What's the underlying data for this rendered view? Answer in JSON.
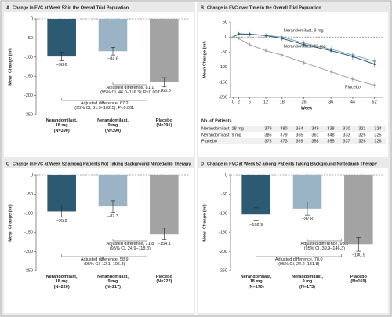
{
  "chart_data": [
    {
      "type": "bar",
      "panel": "A",
      "title": "Change in FVC at Week 52 in the Overall Trial Population",
      "y_label": "Mean Change (ml)",
      "categories": [
        "Nerandomilast,\n18 mg\n(N=390)",
        "Nerandomilast,\n9 mg\n(N=390)",
        "Placebo\n(N=391)"
      ],
      "values": [
        -98.6,
        -84.6,
        -165.8
      ],
      "value_labels": [
        "−98.6",
        "−84.6",
        "−165.8"
      ],
      "errors": [
        11,
        10,
        12
      ],
      "colors": [
        "#2d5a73",
        "#9ab4c6",
        "#a3a3a3"
      ],
      "ylim": [
        -250,
        0
      ],
      "yticks": [
        0,
        -50,
        -100,
        -150,
        -200,
        -250
      ],
      "annotations": [
        "Adjusted difference, 81.1\n(95% CI, 46.0–116.3); P<0.001",
        "Adjusted difference, 67.2\n(95% CI, 31.9–102.5); P<0.001"
      ]
    },
    {
      "type": "line",
      "panel": "B",
      "title": "Change in FVC over Time in the Overall Trial Population",
      "y_label": "Mean Change (ml)",
      "x_label": "Week",
      "x": [
        0,
        2,
        6,
        12,
        18,
        26,
        36,
        44,
        52
      ],
      "xlim": [
        -1,
        55
      ],
      "xticks": [
        0,
        2,
        6,
        12,
        18,
        26,
        36,
        44,
        52
      ],
      "ylim": [
        -200,
        50
      ],
      "yticks": [
        50,
        0,
        -50,
        -100,
        -150,
        -200
      ],
      "series": [
        {
          "name": "Nerandomilast, 9 mg",
          "color": "#7fa6b8",
          "values": [
            0,
            12,
            8,
            5,
            0,
            -20,
            -40,
            -60,
            -80
          ],
          "errors": [
            0,
            6,
            7,
            8,
            8,
            9,
            9,
            10,
            10
          ]
        },
        {
          "name": "Nerandomilast, 18 mg",
          "color": "#2d5a73",
          "values": [
            0,
            10,
            10,
            5,
            -5,
            -25,
            -45,
            -65,
            -90
          ],
          "errors": [
            0,
            6,
            7,
            8,
            8,
            9,
            9,
            10,
            10
          ]
        },
        {
          "name": "Placebo",
          "color": "#a3a3a3",
          "values": [
            0,
            -5,
            -25,
            -45,
            -60,
            -85,
            -115,
            -140,
            -160
          ],
          "errors": [
            0,
            6,
            7,
            8,
            8,
            9,
            9,
            10,
            10
          ]
        }
      ],
      "risk_table": {
        "title": "No. of Patients",
        "rows": [
          {
            "name": "Nerandomilast, 18 mg",
            "values": [
              379,
              380,
              364,
              349,
              338,
              330,
              321,
              324
            ]
          },
          {
            "name": "Nerandomilast, 9 mg",
            "values": [
              386,
              379,
              365,
              361,
              348,
              333,
              326,
              325
            ]
          },
          {
            "name": "Placebo",
            "values": [
              378,
              373,
              369,
              358,
              355,
              337,
              326,
              326
            ]
          }
        ]
      }
    },
    {
      "type": "bar",
      "panel": "C",
      "title": "Change in FVC at Week 52 among Patients Not Taking Background Nintedanib Therapy",
      "y_label": "Mean Change (ml)",
      "categories": [
        "Nerandomilast,\n18 mg\n(N=220)",
        "Nerandomilast,\n9 mg\n(N=217)",
        "Placebo\n(N=222)"
      ],
      "values": [
        -95.2,
        -82.3,
        -154.1
      ],
      "value_labels": [
        "−95.2",
        "−82.3",
        "−154.1"
      ],
      "errors": [
        15,
        15,
        15
      ],
      "colors": [
        "#2d5a73",
        "#9ab4c6",
        "#a3a3a3"
      ],
      "ylim": [
        -250,
        0
      ],
      "yticks": [
        0,
        -50,
        -100,
        -150,
        -200,
        -250
      ],
      "annotations": [
        "Adjusted difference, 71.8\n(95% CI, 24.9–118.8)",
        "Adjusted difference, 58.9\n(95% CI, 12.1–105.8)"
      ]
    },
    {
      "type": "bar",
      "panel": "D",
      "title": "Change in FVC at Week 52 among Patients Taking Background Nintedanib Therapy",
      "y_label": "Mean Change (ml)",
      "categories": [
        "Nerandomilast,\n18 mg\n(N=170)",
        "Nerandomilast,\n9 mg\n(N=173)",
        "Placebo\n(N=169)"
      ],
      "values": [
        -102.9,
        -87.8,
        -180.9
      ],
      "value_labels": [
        "−102.9",
        "−87.8",
        "−180.9"
      ],
      "errors": [
        17,
        17,
        18
      ],
      "colors": [
        "#2d5a73",
        "#9ab4c6",
        "#a3a3a3"
      ],
      "ylim": [
        -250,
        0
      ],
      "yticks": [
        0,
        -50,
        -100,
        -150,
        -200,
        -250
      ],
      "annotations": [
        "Adjusted difference, 93.1\n(95% CI, 39.9–146.3)",
        "Adjusted difference, 78.0\n(95% CI, 24.2–131.8)"
      ]
    }
  ]
}
